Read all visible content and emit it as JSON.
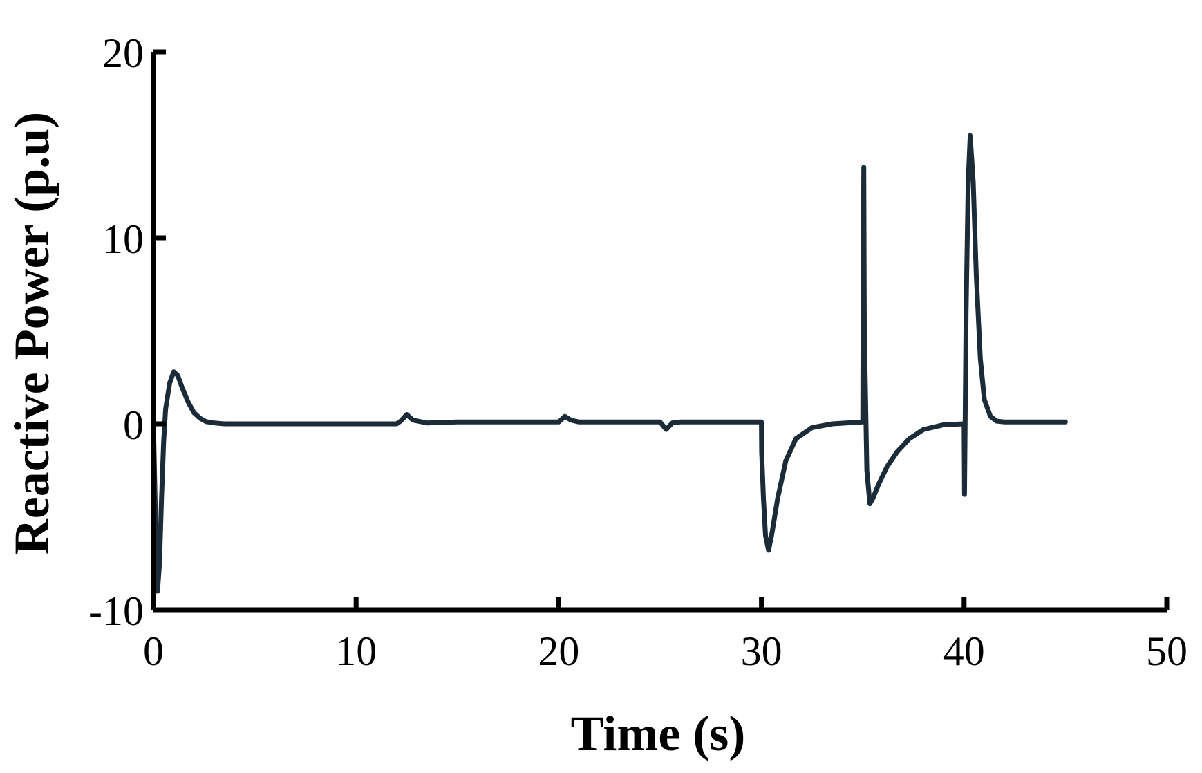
{
  "chart_data": {
    "type": "line",
    "title": "",
    "xlabel": "Time (s)",
    "ylabel": "Reactive Power (p.u)",
    "xlim": [
      0,
      50
    ],
    "ylim": [
      -10,
      20
    ],
    "xticks": [
      0,
      10,
      20,
      30,
      40,
      50
    ],
    "yticks": [
      -10,
      0,
      10,
      20
    ],
    "xtick_labels": [
      "0",
      "10",
      "20",
      "30",
      "40",
      "50"
    ],
    "ytick_labels": [
      "-10",
      "0",
      "10",
      "20"
    ],
    "grid": false,
    "legend": "none",
    "series": [
      {
        "color": "#1b2b38",
        "x": [
          0,
          0.1,
          0.2,
          0.3,
          0.4,
          0.5,
          0.6,
          0.8,
          1.0,
          1.2,
          1.4,
          1.7,
          2.0,
          2.3,
          2.6,
          3.0,
          3.5,
          4.0,
          6.0,
          8.0,
          10.0,
          12.0,
          12.2,
          12.5,
          12.8,
          13.5,
          15.0,
          18.0,
          20.0,
          20.3,
          20.6,
          21.0,
          22.0,
          25.0,
          25.3,
          25.6,
          26.0,
          28.0,
          30.0,
          30.01,
          30.1,
          30.2,
          30.35,
          30.5,
          30.8,
          31.2,
          31.7,
          32.5,
          33.5,
          35.0,
          35.02,
          35.05,
          35.08,
          35.2,
          35.35,
          35.5,
          35.8,
          36.2,
          36.7,
          37.3,
          38.0,
          39.0,
          40.0,
          40.02,
          40.1,
          40.2,
          40.3,
          40.45,
          40.6,
          40.8,
          41.0,
          41.3,
          41.6,
          42.0,
          43.0,
          45.0
        ],
        "y": [
          0,
          -5.0,
          -9.0,
          -7.5,
          -4.0,
          -1.0,
          0.8,
          2.2,
          2.8,
          2.6,
          2.0,
          1.2,
          0.6,
          0.3,
          0.12,
          0.05,
          0,
          0,
          0,
          0,
          0,
          0,
          0.15,
          0.5,
          0.2,
          0.05,
          0.1,
          0.1,
          0.1,
          0.4,
          0.2,
          0.1,
          0.1,
          0.1,
          -0.3,
          0.05,
          0.1,
          0.1,
          0.1,
          -1.5,
          -4.0,
          -6.0,
          -6.8,
          -6.0,
          -4.0,
          -2.0,
          -0.8,
          -0.2,
          0,
          0.1,
          8.0,
          13.8,
          5.0,
          -2.5,
          -4.3,
          -4.0,
          -3.2,
          -2.3,
          -1.5,
          -0.8,
          -0.3,
          -0.05,
          0,
          -3.8,
          6.0,
          13.0,
          15.5,
          13.0,
          8.0,
          3.5,
          1.3,
          0.4,
          0.15,
          0.1,
          0.1,
          0.1
        ]
      }
    ]
  }
}
